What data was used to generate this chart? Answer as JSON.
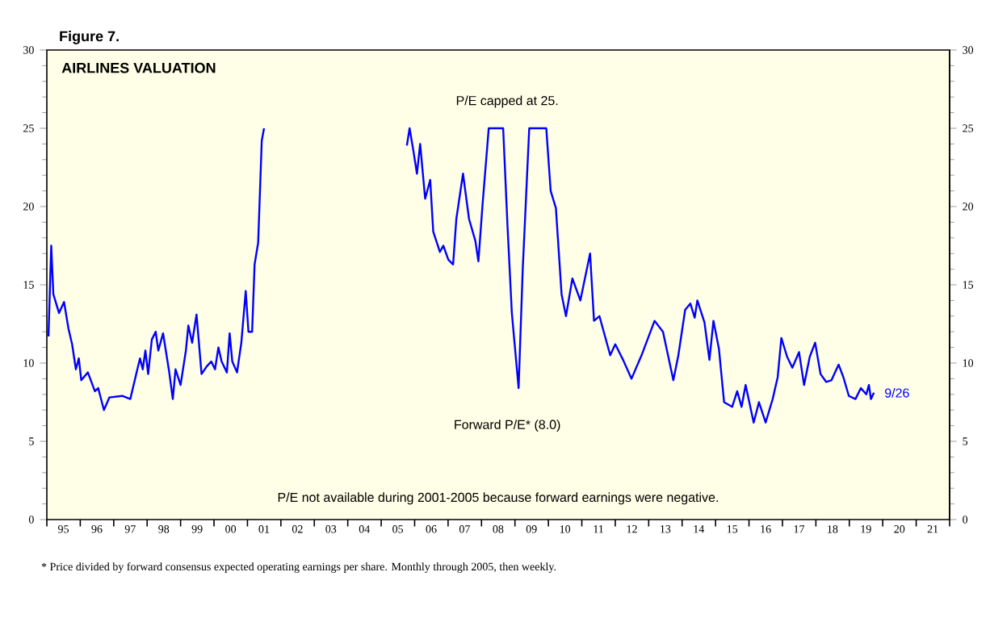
{
  "chart_data": {
    "type": "line",
    "title": "AIRLINES VALUATION",
    "annotations": [
      "Figure 7.",
      "P/E not available during 2001-2005 because forward earnings were negative.",
      "* Price divided by forward consensus expected operating earnings per share. Monthly through 2005, then weekly.",
      "P/E capped at 25.",
      {
        "text": "9/26",
        "x": "2019-09-26",
        "y": 8.1
      }
    ],
    "series": [
      {
        "name": "Forward P/E* (8.0)",
        "color": "#0000ff",
        "x": [
          "1995-01-19",
          "1995-02-18",
          "1995-03-13",
          "1995-05-14",
          "1995-07-08",
          "1995-08-25",
          "1995-10-04",
          "1995-11-14",
          "1995-12-16",
          "1996-01-12",
          "1996-03-24",
          "1996-06-09",
          "1996-07-15",
          "1996-09-16",
          "1996-11-14",
          "1997-04-04",
          "1997-07-01",
          "1997-09-16",
          "1997-10-15",
          "1997-11-14",
          "1997-12-13",
          "1998-01-12",
          "1998-02-21",
          "1998-04-04",
          "1998-05-03",
          "1998-06-24",
          "1998-08-28",
          "1998-10-08",
          "1998-11-07",
          "1999-01-01",
          "1999-02-28",
          "1999-03-27",
          "1999-05-07",
          "1999-06-24",
          "1999-08-18",
          "1999-10-15",
          "1999-12-02",
          "2000-01-12",
          "2000-02-18",
          "2000-03-24",
          "2000-05-21",
          "2000-06-20",
          "2000-07-19",
          "2000-09-09",
          "2000-10-26",
          "2000-12-13",
          "2001-01-12",
          "2001-02-21",
          "2001-03-20",
          "2001-04-28",
          "2001-06-06",
          "2001-07-01",
          "2003-07-01",
          "2005-10-08",
          "2005-11-07",
          "2005-12-20",
          "2006-01-26",
          "2006-03-02",
          "2006-04-26",
          "2006-06-20",
          "2006-07-23",
          "2006-10-04",
          "2006-11-10",
          "2007-01-04",
          "2007-02-25",
          "2007-04-01",
          "2007-06-13",
          "2007-08-18",
          "2007-10-26",
          "2007-11-28",
          "2008-01-12",
          "2008-03-20",
          "2008-08-25",
          "2008-10-12",
          "2008-11-28",
          "2009-02-10",
          "2009-03-27",
          "2009-06-06",
          "2009-12-09",
          "2010-01-26",
          "2010-03-24",
          "2010-05-25",
          "2010-07-12",
          "2010-09-20",
          "2010-12-16",
          "2011-04-01",
          "2011-05-14",
          "2011-07-12",
          "2011-11-07",
          "2012-01-01",
          "2012-03-27",
          "2012-06-27",
          "2012-10-15",
          "2013-03-06",
          "2013-06-06",
          "2013-09-27",
          "2013-11-21",
          "2014-02-03",
          "2014-04-01",
          "2014-05-18",
          "2014-06-16",
          "2014-09-02",
          "2014-10-26",
          "2014-12-09",
          "2015-02-07",
          "2015-04-04",
          "2015-07-01",
          "2015-08-25",
          "2015-10-12",
          "2015-11-25",
          "2016-02-21",
          "2016-04-19",
          "2016-07-01",
          "2016-09-16",
          "2016-11-10",
          "2016-12-20",
          "2017-02-21",
          "2017-04-19",
          "2017-07-01",
          "2017-08-25",
          "2017-10-26",
          "2017-12-24",
          "2018-02-21",
          "2018-04-23",
          "2018-06-20",
          "2018-09-06",
          "2018-10-28",
          "2018-12-27",
          "2019-03-09",
          "2019-05-07",
          "2019-07-05",
          "2019-08-03",
          "2019-08-25",
          "2019-09-26"
        ],
        "values": [
          11.7,
          17.5,
          14.4,
          13.2,
          13.9,
          12.2,
          11.2,
          9.6,
          10.3,
          8.9,
          9.4,
          8.2,
          8.4,
          7.0,
          7.8,
          7.9,
          7.7,
          9.6,
          10.3,
          9.6,
          10.8,
          9.3,
          11.5,
          12.0,
          10.8,
          11.9,
          9.5,
          7.7,
          9.6,
          8.6,
          10.8,
          12.4,
          11.3,
          13.1,
          9.3,
          9.8,
          10.1,
          9.6,
          11.0,
          10.1,
          9.4,
          11.9,
          10.1,
          9.4,
          11.3,
          14.6,
          12.0,
          12.0,
          16.3,
          17.7,
          24.2,
          25.0,
          null,
          23.9,
          25.0,
          23.5,
          22.1,
          24.0,
          20.5,
          21.7,
          18.4,
          17.1,
          17.5,
          16.6,
          16.3,
          19.2,
          22.1,
          19.2,
          17.8,
          16.5,
          20.1,
          25.0,
          25.0,
          18.7,
          13.2,
          8.4,
          16.0,
          25.0,
          25.0,
          21.0,
          19.9,
          14.4,
          13.0,
          15.4,
          14.0,
          17.0,
          12.7,
          13.0,
          10.5,
          11.2,
          10.2,
          9.0,
          10.5,
          12.7,
          12.0,
          8.9,
          10.5,
          13.4,
          13.8,
          12.9,
          14.0,
          12.6,
          10.2,
          12.7,
          10.9,
          7.5,
          7.2,
          8.2,
          7.2,
          8.6,
          6.2,
          7.5,
          6.2,
          7.7,
          9.1,
          11.6,
          10.4,
          9.7,
          10.7,
          8.6,
          10.4,
          11.3,
          9.3,
          8.8,
          8.9,
          9.9,
          9.1,
          7.9,
          7.7,
          8.4,
          8.0,
          8.6,
          7.7,
          8.1
        ]
      }
    ],
    "xlim": [
      "1995-01-01",
      "2022-01-01"
    ],
    "xticks": [
      {
        "value": "1995-01-01",
        "label": null
      },
      {
        "value": "1995-07-01",
        "label": "95"
      },
      {
        "value": "1996-01-01",
        "label": null
      },
      {
        "value": "1996-07-01",
        "label": "96"
      },
      {
        "value": "1997-01-01",
        "label": null
      },
      {
        "value": "1997-07-01",
        "label": "97"
      },
      {
        "value": "1998-01-01",
        "label": null
      },
      {
        "value": "1998-07-01",
        "label": "98"
      },
      {
        "value": "1999-01-01",
        "label": null
      },
      {
        "value": "1999-07-01",
        "label": "99"
      },
      {
        "value": "2000-01-01",
        "label": null
      },
      {
        "value": "2000-07-01",
        "label": "00"
      },
      {
        "value": "2001-01-01",
        "label": null
      },
      {
        "value": "2001-07-01",
        "label": "01"
      },
      {
        "value": "2002-01-01",
        "label": null
      },
      {
        "value": "2002-07-01",
        "label": "02"
      },
      {
        "value": "2003-01-01",
        "label": null
      },
      {
        "value": "2003-07-01",
        "label": "03"
      },
      {
        "value": "2004-01-01",
        "label": null
      },
      {
        "value": "2004-07-01",
        "label": "04"
      },
      {
        "value": "2005-01-01",
        "label": null
      },
      {
        "value": "2005-07-01",
        "label": "05"
      },
      {
        "value": "2006-01-01",
        "label": null
      },
      {
        "value": "2006-07-01",
        "label": "06"
      },
      {
        "value": "2007-01-01",
        "label": null
      },
      {
        "value": "2007-07-01",
        "label": "07"
      },
      {
        "value": "2008-01-01",
        "label": null
      },
      {
        "value": "2008-07-01",
        "label": "08"
      },
      {
        "value": "2009-01-01",
        "label": null
      },
      {
        "value": "2009-07-01",
        "label": "09"
      },
      {
        "value": "2010-01-01",
        "label": null
      },
      {
        "value": "2010-07-01",
        "label": "10"
      },
      {
        "value": "2011-01-01",
        "label": null
      },
      {
        "value": "2011-07-01",
        "label": "11"
      },
      {
        "value": "2012-01-01",
        "label": null
      },
      {
        "value": "2012-07-01",
        "label": "12"
      },
      {
        "value": "2013-01-01",
        "label": null
      },
      {
        "value": "2013-07-01",
        "label": "13"
      },
      {
        "value": "2014-01-01",
        "label": null
      },
      {
        "value": "2014-07-01",
        "label": "14"
      },
      {
        "value": "2015-01-01",
        "label": null
      },
      {
        "value": "2015-07-01",
        "label": "15"
      },
      {
        "value": "2016-01-01",
        "label": null
      },
      {
        "value": "2016-07-01",
        "label": "16"
      },
      {
        "value": "2017-01-01",
        "label": null
      },
      {
        "value": "2017-07-01",
        "label": "17"
      },
      {
        "value": "2018-01-01",
        "label": null
      },
      {
        "value": "2018-07-01",
        "label": "18"
      },
      {
        "value": "2019-01-01",
        "label": null
      },
      {
        "value": "2019-07-01",
        "label": "19"
      },
      {
        "value": "2020-01-01",
        "label": null
      },
      {
        "value": "2020-07-01",
        "label": "20"
      },
      {
        "value": "2021-01-01",
        "label": null
      },
      {
        "value": "2021-07-01",
        "label": "21"
      },
      {
        "value": "2022-01-01",
        "label": null
      }
    ],
    "ylim": [
      0,
      30
    ],
    "yticks": [
      0,
      5,
      10,
      15,
      20,
      25,
      30
    ],
    "y2lim": [
      0,
      30
    ],
    "y2ticks": [
      0,
      5,
      10,
      15,
      20,
      25,
      30
    ],
    "grid": false
  }
}
